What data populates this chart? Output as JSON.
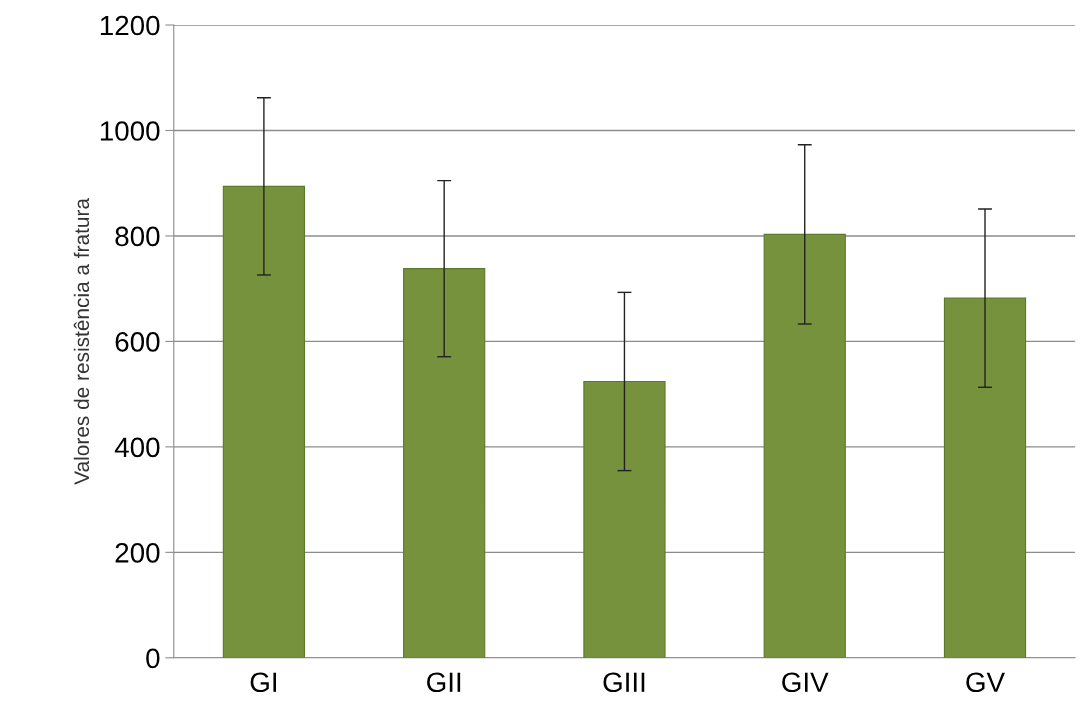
{
  "chart_data": {
    "type": "bar",
    "ylabel": "Valores de resistência a fratura",
    "categories": [
      "GI",
      "GII",
      "GIII",
      "GIV",
      "GV"
    ],
    "values": [
      894,
      738,
      524,
      803,
      682
    ],
    "errors": [
      168,
      167,
      169,
      170,
      169
    ],
    "color": "#76923c",
    "ylim": [
      0,
      1200
    ],
    "yticks": [
      0,
      200,
      400,
      600,
      800,
      1000,
      1200
    ],
    "grid": "y"
  }
}
